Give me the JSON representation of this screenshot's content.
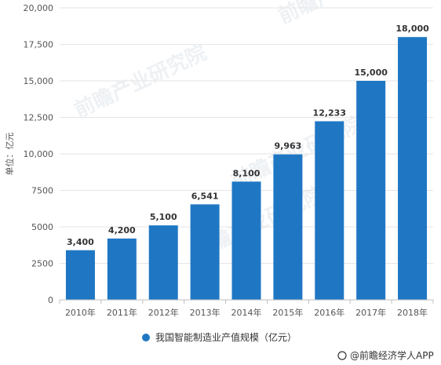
{
  "chart_data": {
    "type": "bar",
    "categories": [
      "2010年",
      "2011年",
      "2012年",
      "2013年",
      "2014年",
      "2015年",
      "2016年",
      "2017年",
      "2018年"
    ],
    "series": [
      {
        "name": "我国智能制造业产值规模（亿元）",
        "values": [
          3400,
          4200,
          5100,
          6541,
          8100,
          9963,
          12233,
          15000,
          18000
        ],
        "color": "#1f77c4"
      }
    ],
    "data_labels": [
      "3,400",
      "4,200",
      "5,100",
      "6,541",
      "8,100",
      "9,963",
      "12,233",
      "15,000",
      "18,000"
    ],
    "ylabel": "单位：亿元",
    "ylim": [
      0,
      20000
    ],
    "yticks": [
      0,
      2500,
      5000,
      7500,
      10000,
      12500,
      15000,
      17500,
      20000
    ],
    "ytick_labels": [
      "0",
      "2500",
      "5000",
      "7500",
      "10,000",
      "12,500",
      "15,000",
      "17,500",
      "20,000"
    ],
    "grid": true,
    "legend_position": "bottom"
  },
  "credit": "@前瞻经济学人APP",
  "watermark": "前瞻产业研究院"
}
